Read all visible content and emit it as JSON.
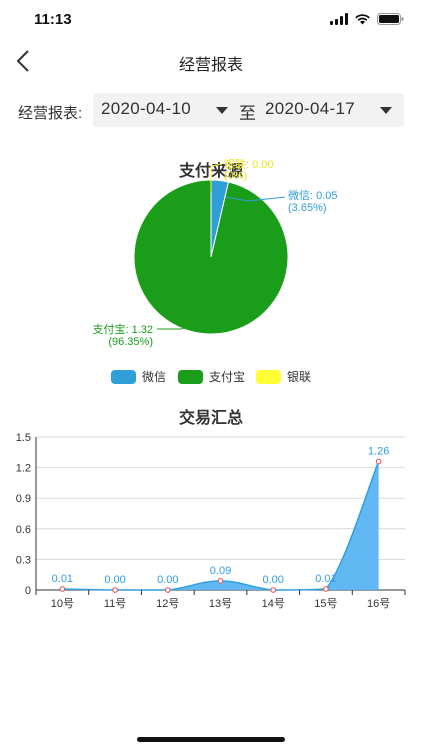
{
  "status_bar": {
    "time": "11:13"
  },
  "nav": {
    "title": "经营报表"
  },
  "filter": {
    "label": "经营报表:",
    "start_date": "2020-04-10",
    "separator": "至",
    "end_date": "2020-04-17"
  },
  "chart_data": [
    {
      "type": "pie",
      "title": "支付来源",
      "labels": [
        "微信",
        "支付宝",
        "银联"
      ],
      "values": [
        0.05,
        1.32,
        0.0
      ],
      "value_labels": [
        "0.05",
        "1.32",
        "0.00"
      ],
      "percent_labels": [
        "3.65%",
        "96.35%",
        "0%"
      ],
      "colors": [
        "#2f9fd8",
        "#1a9e1a",
        "#ffff33"
      ],
      "legend": "bottom-center"
    },
    {
      "type": "area",
      "title": "交易汇总",
      "categories": [
        "10号",
        "11号",
        "12号",
        "13号",
        "14号",
        "15号",
        "16号"
      ],
      "values": [
        0.01,
        0.0,
        0.0,
        0.09,
        0.0,
        0.01,
        1.26
      ],
      "value_labels": [
        "0.01",
        "0.00",
        "0.00",
        "0.09",
        "0.00",
        "0.01",
        "1.26"
      ],
      "yticks": [
        "0",
        "0.3",
        "0.6",
        "0.9",
        "1.2",
        "1.5"
      ],
      "ylim": [
        0,
        1.5
      ],
      "grid": true,
      "colors": {
        "line": "#2f9fe0",
        "fill": "#5ab4f2",
        "point": "#e04a4a"
      }
    }
  ]
}
